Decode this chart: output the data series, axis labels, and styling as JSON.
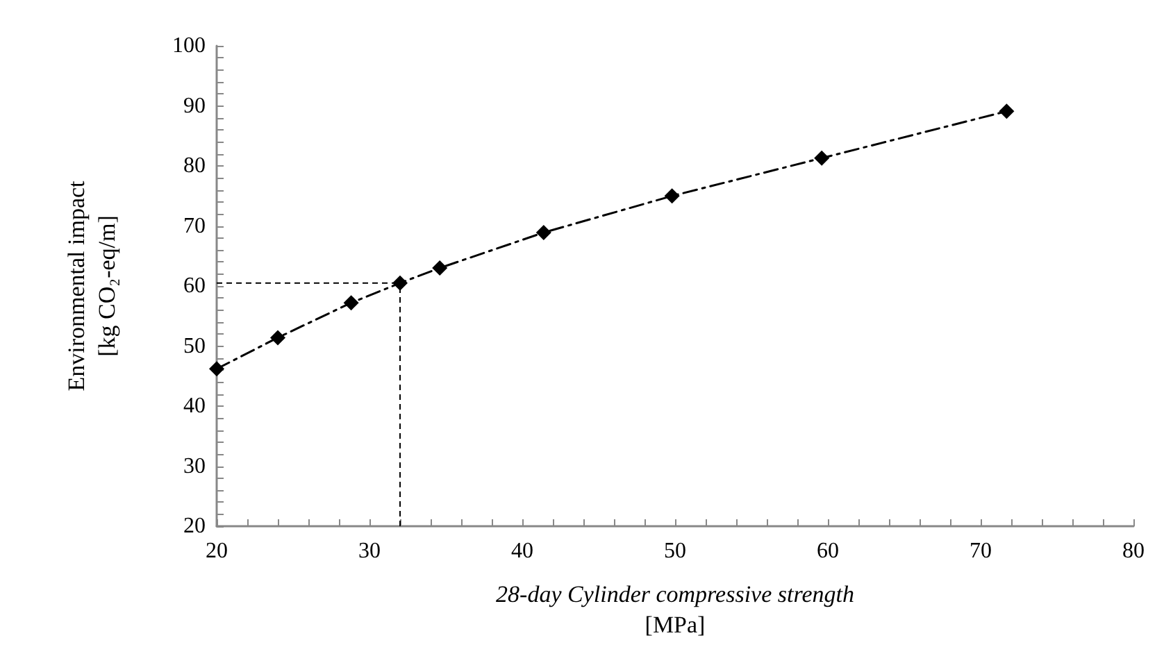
{
  "chart_data": {
    "type": "line",
    "xlabel": "28-day Cylinder compressive strength\n[MPa]",
    "ylabel": "Environmental impact\n[kg CO₂-eq/m]",
    "x": [
      20,
      24,
      28.8,
      32,
      34.6,
      41.4,
      49.8,
      59.6,
      71.7
    ],
    "series": [
      {
        "color": "#000000",
        "values": [
          46.2,
          51.4,
          57.2,
          60.5,
          63.0,
          68.9,
          75.0,
          81.3,
          89.1
        ]
      }
    ],
    "xlim": [
      20,
      80
    ],
    "xticks": [
      20,
      30,
      40,
      50,
      60,
      70,
      80
    ],
    "ylim": [
      20,
      100
    ],
    "yticks": [
      20,
      30,
      40,
      50,
      60,
      70,
      80,
      90,
      100
    ],
    "grid": false,
    "marker": "diamond",
    "line_style": "dashed",
    "ref_lines": [
      {
        "axis": "x",
        "value": 32,
        "color": "#000000",
        "line_style": "dashed"
      },
      {
        "axis": "y",
        "value": 60.5,
        "color": "#000000",
        "line_style": "dashed"
      }
    ]
  }
}
